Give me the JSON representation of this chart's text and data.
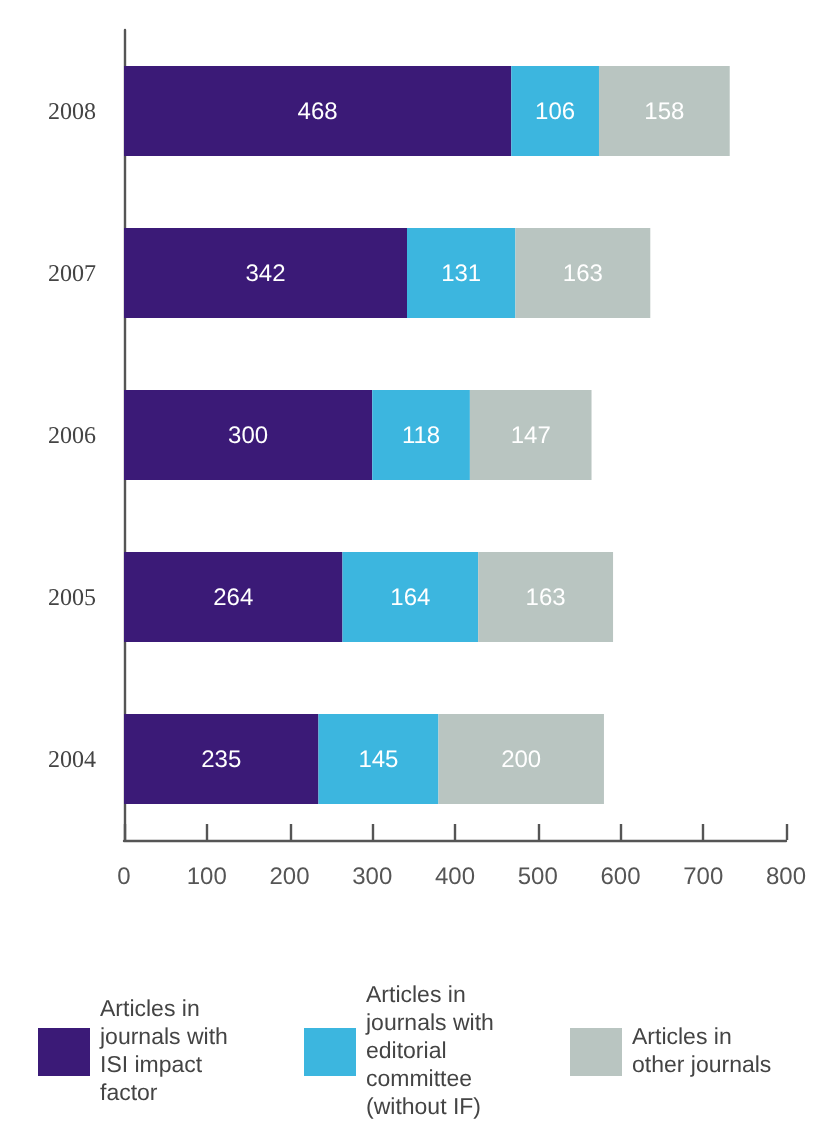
{
  "chart_data": {
    "type": "bar",
    "orientation": "horizontal",
    "stacked": true,
    "categories": [
      "2008",
      "2007",
      "2006",
      "2005",
      "2004"
    ],
    "series": [
      {
        "name": "Articles in journals with ISI impact factor",
        "color": "#3b1a77",
        "values": [
          468,
          342,
          300,
          264,
          235
        ]
      },
      {
        "name": "Articles in journals with editorial committee (without IF)",
        "color": "#3cb6df",
        "values": [
          106,
          131,
          118,
          164,
          145
        ]
      },
      {
        "name": "Articles in other journals",
        "color": "#b9c5c1",
        "values": [
          158,
          163,
          147,
          163,
          200
        ]
      }
    ],
    "xlim": [
      0,
      800
    ],
    "xticks": [
      0,
      100,
      200,
      300,
      400,
      500,
      600,
      700,
      800
    ],
    "data_labels": true,
    "grid": false,
    "legend": "bottom"
  }
}
